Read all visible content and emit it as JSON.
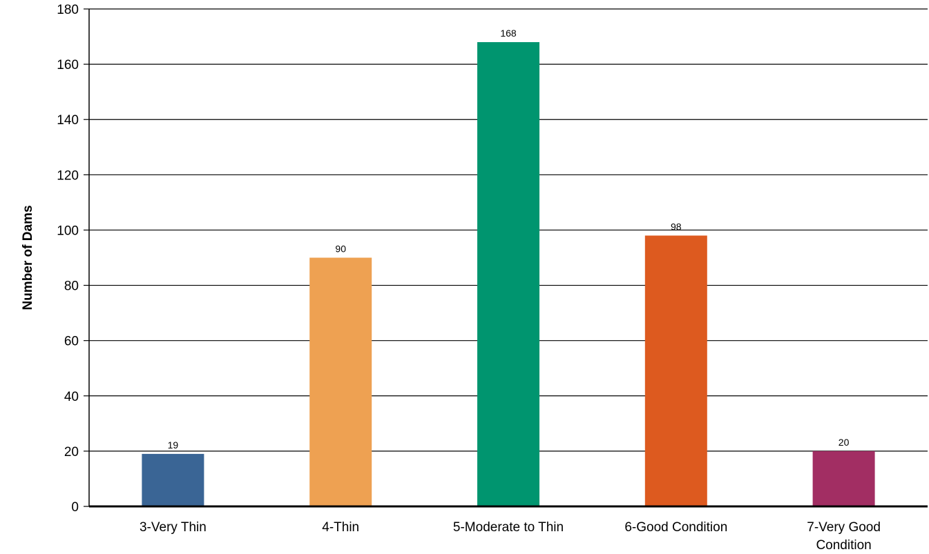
{
  "chart_data": {
    "type": "bar",
    "title": "",
    "xlabel": "",
    "ylabel": "Number of Dams",
    "ylim": [
      0,
      180
    ],
    "yticks": [
      0,
      20,
      40,
      60,
      80,
      100,
      120,
      140,
      160,
      180
    ],
    "grid": true,
    "legend": "none",
    "categories": [
      [
        "3-Very Thin"
      ],
      [
        "4-Thin"
      ],
      [
        "5-Moderate to Thin"
      ],
      [
        "6-Good Condition"
      ],
      [
        "7-Very Good",
        "Condition"
      ]
    ],
    "values": [
      19,
      90,
      168,
      98,
      20
    ],
    "colors": [
      "#3A6595",
      "#EEA152",
      "#00956F",
      "#DD5A1F",
      "#A22E63"
    ]
  }
}
